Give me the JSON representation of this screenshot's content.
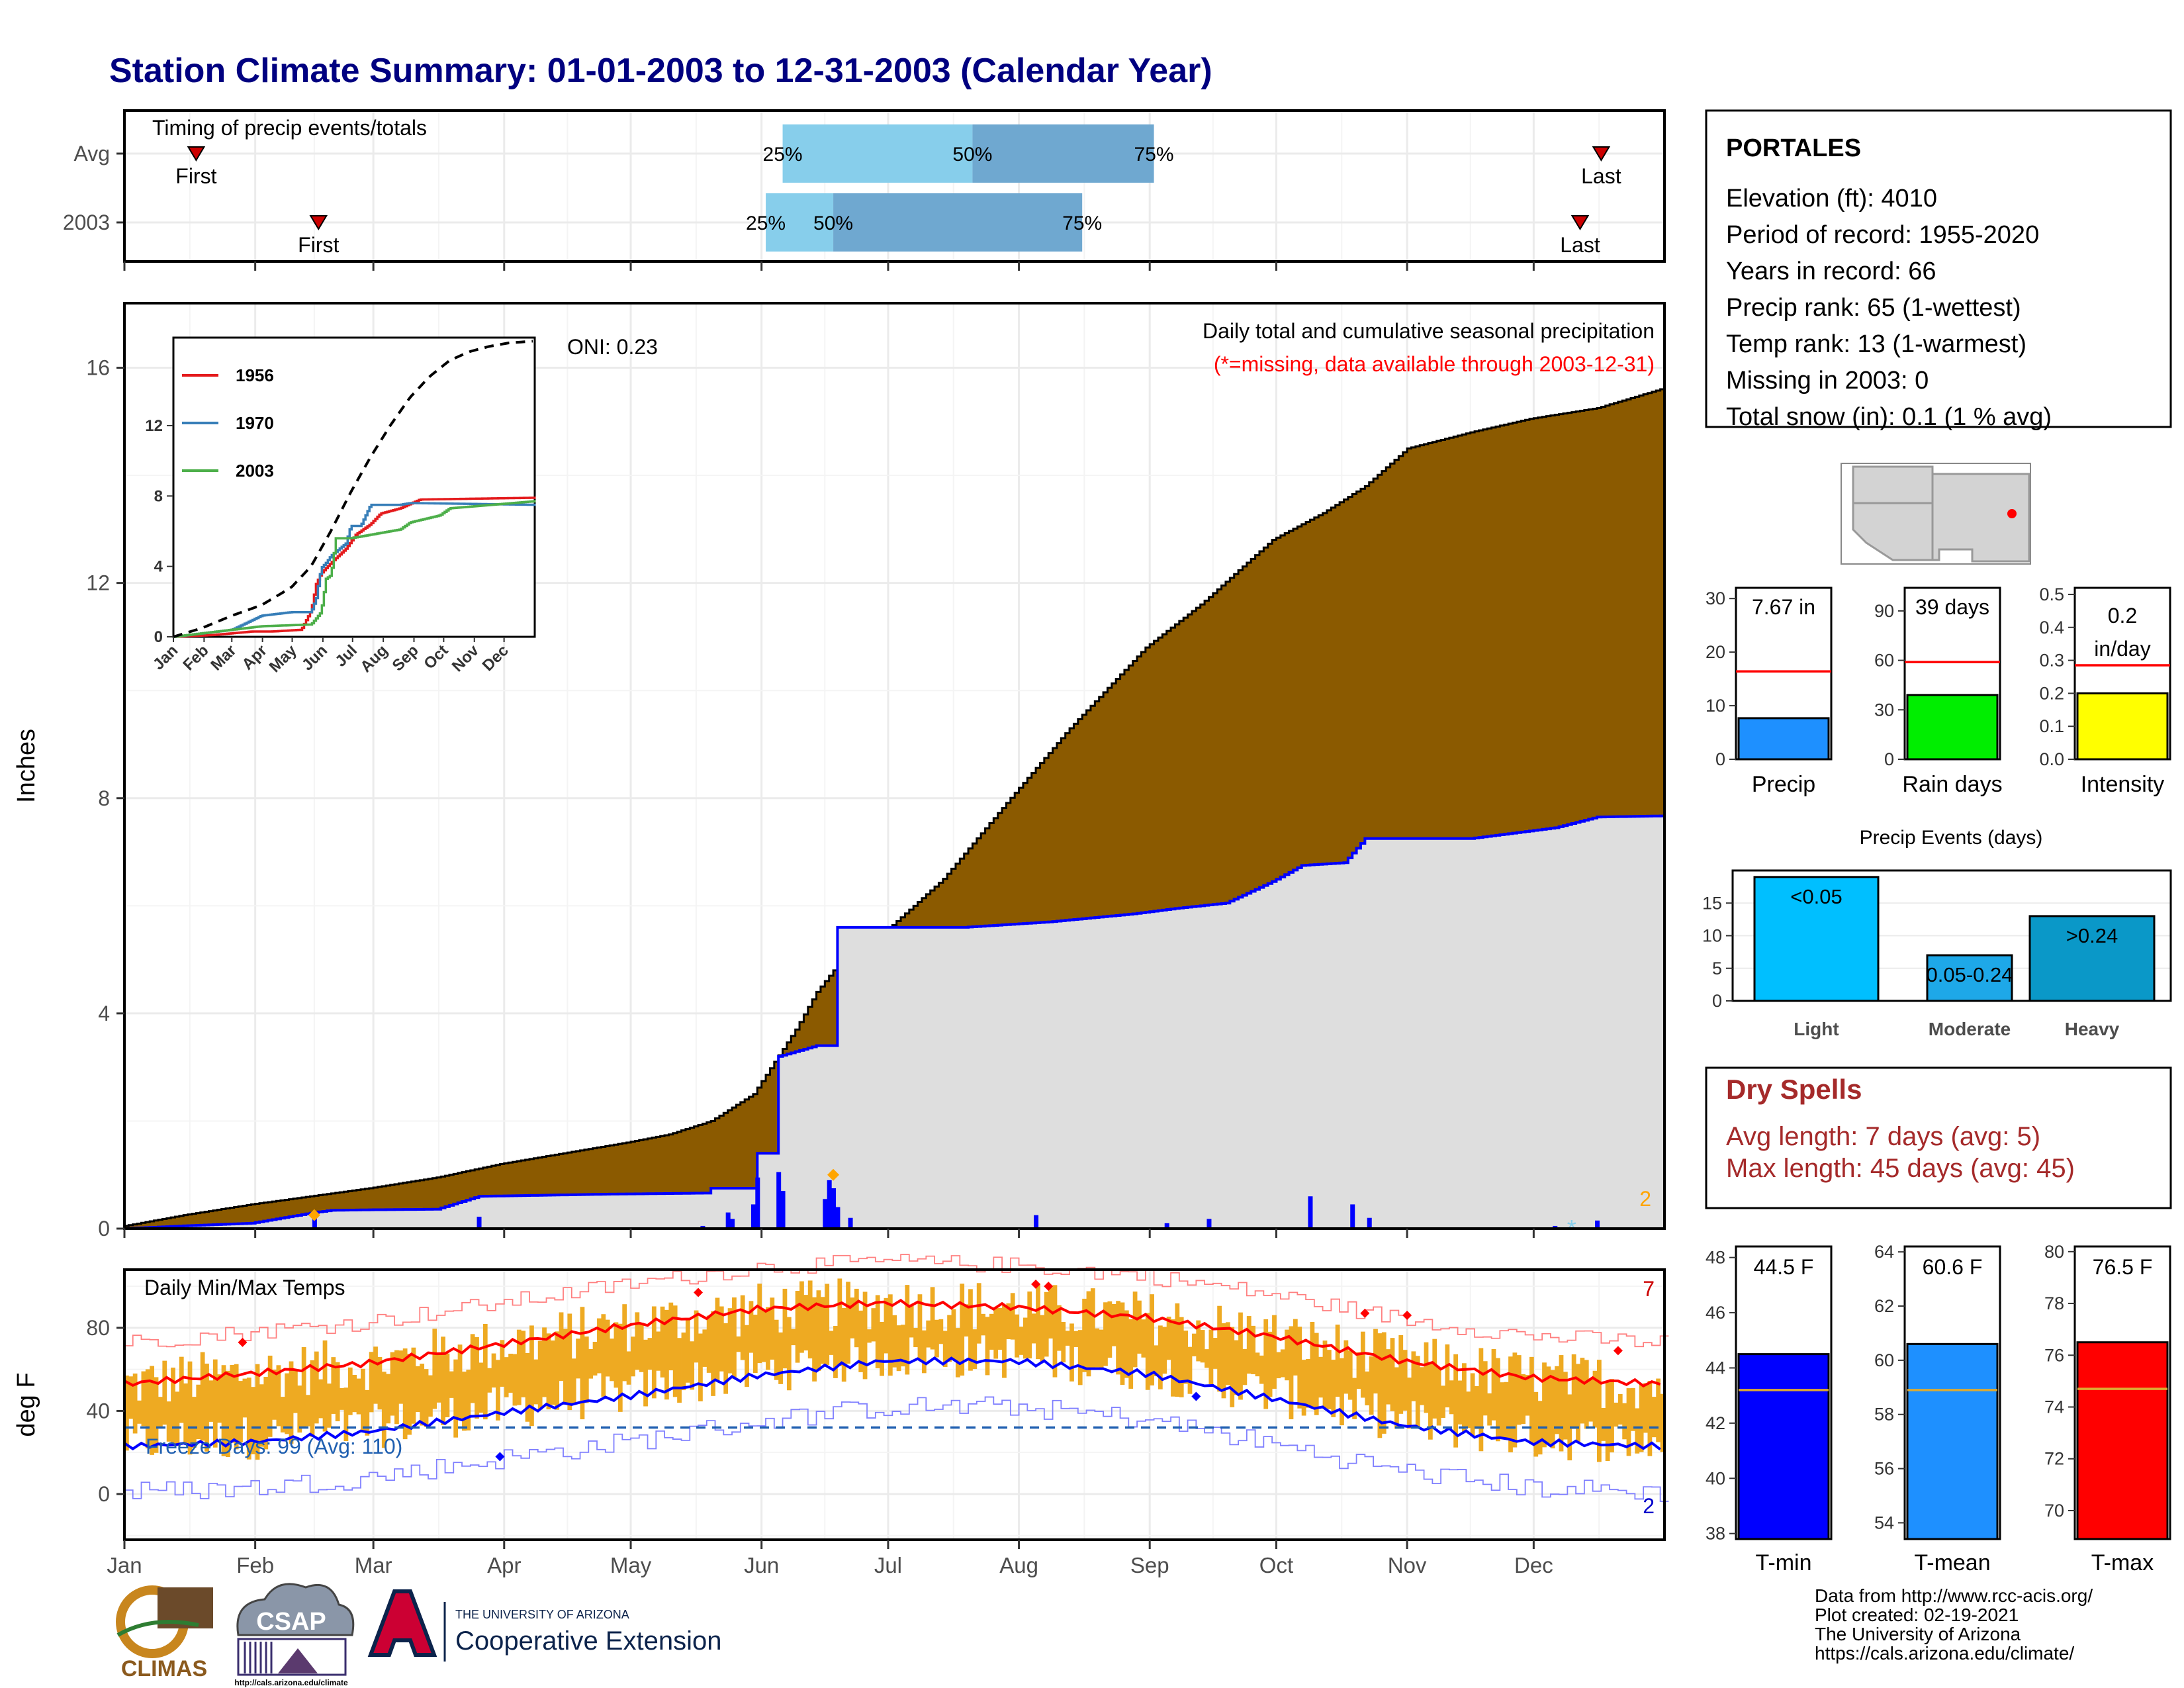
{
  "title": "Station Climate Summary: 01-01-2003 to 12-31-2003 (Calendar Year)",
  "colors": {
    "title": "#000080",
    "cum_avg_fill": "#8B5A00",
    "cum_year_fill": "#DEDEDE",
    "cum_year_line": "#0000FF",
    "missing_text": "#FF0000",
    "temp_bar": "#EEAA22",
    "tmax_avg": "#FF0000",
    "tmin_avg": "#0000FF",
    "dry_spell_text": "#A52A2A",
    "q_light": "#87CEEB",
    "q_dark": "#6FA8D0"
  },
  "month_labels": [
    "Jan",
    "Feb",
    "Mar",
    "Apr",
    "May",
    "Jun",
    "Jul",
    "Aug",
    "Sep",
    "Oct",
    "Nov",
    "Dec"
  ],
  "timing_panel": {
    "title": "Timing of precip events/totals",
    "rows": [
      {
        "label": "Avg",
        "first_doy": 18,
        "last_doy": 351,
        "q25_doy": 157,
        "q50_doy": 202,
        "q75_doy": 245,
        "labels": {
          "first": "First",
          "last": "Last",
          "q25": "25%",
          "q50": "50%",
          "q75": "75%"
        }
      },
      {
        "label": "2003",
        "first_doy": 47,
        "last_doy": 346,
        "q25_doy": 153,
        "q50_doy": 169,
        "q75_doy": 228,
        "labels": {
          "first": "First",
          "last": "Last",
          "q25": "25%",
          "q50": "50%",
          "q75": "75%"
        }
      }
    ]
  },
  "precip_panel": {
    "ylabel": "Inches",
    "ylim": [
      0,
      17.2
    ],
    "yticks": [
      0,
      4,
      8,
      12,
      16
    ],
    "subtitle": "Daily total and cumulative seasonal precipitation",
    "missing_note": "(*=missing, data available through 2003-12-31)",
    "oni": "ONI: 0.23",
    "missing_count": "2"
  },
  "inset": {
    "ylim": [
      0,
      17
    ],
    "yticks": [
      0,
      4,
      8,
      12
    ],
    "xticks": [
      "Jan",
      "Feb",
      "Mar",
      "Apr",
      "May",
      "Jun",
      "Jul",
      "Aug",
      "Sep",
      "Oct",
      "Nov",
      "Dec"
    ],
    "legend": [
      {
        "name": "1956",
        "color": "#E41A1C"
      },
      {
        "name": "1970",
        "color": "#377EB8"
      },
      {
        "name": "2003",
        "color": "#4DAF4A"
      }
    ]
  },
  "temp_panel": {
    "ylabel": "deg F",
    "title": "Daily Min/Max Temps",
    "ylim": [
      -22,
      108
    ],
    "yticks": [
      0,
      40,
      80
    ],
    "freeze_line": 32,
    "freeze_label": "Freeze Days: 99 (Avg: 110)",
    "count_red": "7",
    "count_blue": "2"
  },
  "station": {
    "name": "PORTALES",
    "lines": [
      "Elevation (ft): 4010",
      "Period of record: 1955-2020",
      "Years in record: 66",
      "Precip rank: 65 (1-wettest)",
      "Temp rank: 13 (1-warmest)",
      "Missing in 2003: 0",
      "Total snow (in): 0.1 (1 % avg)"
    ]
  },
  "summary_bars": [
    {
      "name": "Precip",
      "value_label": "7.67 in",
      "value": 7.67,
      "avg": 16.4,
      "ylim": [
        0,
        32
      ],
      "yticks": [
        "0",
        "10",
        "20",
        "30"
      ],
      "ytick_values": [
        0,
        10,
        20,
        30
      ],
      "color": "#1E90FF"
    },
    {
      "name": "Rain days",
      "value_label": "39 days",
      "value": 39,
      "avg": 59,
      "ylim": [
        0,
        104
      ],
      "yticks": [
        "0",
        "30",
        "60",
        "90"
      ],
      "ytick_values": [
        0,
        30,
        60,
        90
      ],
      "color": "#00EE00"
    },
    {
      "name": "Intensity",
      "value_label": "0.2 in/day",
      "value_label_top": "0.2",
      "value_label_bottom": "in/day",
      "value": 0.2,
      "avg": 0.285,
      "ylim": [
        0,
        0.52
      ],
      "yticks": [
        "0.0",
        "0.1",
        "0.2",
        "0.3",
        "0.4",
        "0.5"
      ],
      "ytick_values": [
        0,
        0.1,
        0.2,
        0.3,
        0.4,
        0.5
      ],
      "color": "#FFFF00"
    }
  ],
  "precip_events": {
    "title": "Precip Events (days)",
    "ylim": [
      0,
      20
    ],
    "yticks": [
      0,
      5,
      10,
      15
    ],
    "bars": [
      {
        "name": "Light",
        "value": 19,
        "label": "<0.05",
        "color": "#00BFFF"
      },
      {
        "name": "Moderate",
        "value": 7,
        "label": "0.05-0.24",
        "color": "#1EA8E8"
      },
      {
        "name": "Heavy",
        "value": 13,
        "label": ">0.24",
        "color": "#0A98C8"
      }
    ]
  },
  "dry_spells": {
    "title": "Dry Spells",
    "lines": [
      "Avg length: 7 days (avg: 5)",
      "Max length: 45 days (avg: 45)"
    ]
  },
  "temp_bars": [
    {
      "name": "T-min",
      "value_label": "44.5 F",
      "value": 44.5,
      "avg": 43.2,
      "ylim": [
        37.8,
        48.4
      ],
      "yticks": [
        "38",
        "40",
        "42",
        "44",
        "46",
        "48"
      ],
      "ytick_values": [
        38,
        40,
        42,
        44,
        46,
        48
      ],
      "color": "#0000FF"
    },
    {
      "name": "T-mean",
      "value_label": "60.6 F",
      "value": 60.6,
      "avg": 58.9,
      "ylim": [
        53.4,
        64.2
      ],
      "yticks": [
        "54",
        "56",
        "58",
        "60",
        "62",
        "64"
      ],
      "ytick_values": [
        54,
        56,
        58,
        60,
        62,
        64
      ],
      "color": "#1E90FF"
    },
    {
      "name": "T-max",
      "value_label": "76.5 F",
      "value": 76.5,
      "avg": 74.7,
      "ylim": [
        68.9,
        80.2
      ],
      "yticks": [
        "70",
        "72",
        "74",
        "76",
        "78",
        "80"
      ],
      "ytick_values": [
        70,
        72,
        74,
        76,
        78,
        80
      ],
      "color": "#FF0000"
    }
  ],
  "credits": [
    "Data from http://www.rcc-acis.org/",
    "Plot created: 02-19-2021",
    "The University of Arizona",
    "https://cals.arizona.edu/climate/"
  ],
  "logos": {
    "climas": "CLIMAS",
    "csap": "CSAP",
    "csap_url": "http://cals.arizona.edu/climate",
    "ua_small": "THE UNIVERSITY OF ARIZONA",
    "ua_big": "Cooperative Extension"
  },
  "chart_data": [
    {
      "type": "area",
      "title": "Daily total and cumulative seasonal precipitation",
      "ylabel": "Inches",
      "ylim": [
        0,
        17.2
      ],
      "series": [
        {
          "name": "",
          "x_doy": [
            1,
            15,
            31,
            45,
            59,
            75,
            90,
            105,
            120,
            130,
            140,
            150,
            160,
            165,
            170,
            181,
            195,
            212,
            225,
            243,
            256,
            273,
            285,
            295,
            305,
            320,
            334,
            350,
            365
          ],
          "values": [
            0.05,
            0.25,
            0.45,
            0.6,
            0.75,
            0.95,
            1.2,
            1.4,
            1.6,
            1.75,
            2.0,
            2.5,
            3.7,
            4.4,
            4.9,
            5.5,
            6.5,
            8.1,
            9.3,
            10.8,
            11.6,
            12.8,
            13.3,
            13.8,
            14.5,
            14.8,
            15.05,
            15.25,
            15.6
          ]
        },
        {
          "name": "",
          "x_doy": [
            1,
            15,
            31,
            46,
            50,
            60,
            75,
            85,
            100,
            115,
            139,
            140,
            150,
            151,
            155,
            156,
            165,
            169,
            170,
            200,
            220,
            240,
            250,
            262,
            273,
            280,
            290,
            295,
            320,
            340,
            350,
            365
          ],
          "values": [
            0.0,
            0.05,
            0.1,
            0.3,
            0.34,
            0.35,
            0.36,
            0.6,
            0.62,
            0.64,
            0.66,
            0.75,
            0.75,
            1.4,
            1.4,
            3.2,
            3.4,
            3.4,
            5.6,
            5.6,
            5.7,
            5.85,
            5.95,
            6.05,
            6.45,
            6.75,
            6.8,
            7.25,
            7.25,
            7.45,
            7.65,
            7.67
          ]
        }
      ],
      "daily_bars": [
        {
          "doy": 46,
          "value": 0.2
        },
        {
          "doy": 85,
          "value": 0.22
        },
        {
          "doy": 138,
          "value": 0.05
        },
        {
          "doy": 144,
          "value": 0.3
        },
        {
          "doy": 145,
          "value": 0.18
        },
        {
          "doy": 150,
          "value": 0.45
        },
        {
          "doy": 151,
          "value": 0.95
        },
        {
          "doy": 156,
          "value": 1.05
        },
        {
          "doy": 157,
          "value": 0.7
        },
        {
          "doy": 167,
          "value": 0.55
        },
        {
          "doy": 168,
          "value": 0.9
        },
        {
          "doy": 169,
          "value": 0.75
        },
        {
          "doy": 170,
          "value": 0.4
        },
        {
          "doy": 173,
          "value": 0.2
        },
        {
          "doy": 217,
          "value": 0.25
        },
        {
          "doy": 248,
          "value": 0.1
        },
        {
          "doy": 258,
          "value": 0.18
        },
        {
          "doy": 282,
          "value": 0.6
        },
        {
          "doy": 292,
          "value": 0.45
        },
        {
          "doy": 296,
          "value": 0.2
        },
        {
          "doy": 340,
          "value": 0.05
        },
        {
          "doy": 350,
          "value": 0.15
        }
      ]
    },
    {
      "type": "line",
      "title": "Daily Min/Max Temps",
      "ylabel": "deg F",
      "ylim": [
        -22,
        108
      ],
      "series": [
        {
          "name": "",
          "x_doy": [
            1,
            31,
            59,
            90,
            120,
            151,
            181,
            212,
            243,
            273,
            304,
            334,
            365
          ],
          "values": [
            53,
            58,
            63,
            72,
            81,
            89,
            92,
            90,
            85,
            76,
            64,
            56,
            53
          ]
        },
        {
          "name": "",
          "x_doy": [
            1,
            31,
            59,
            90,
            120,
            151,
            181,
            212,
            243,
            273,
            304,
            334,
            365
          ],
          "values": [
            23,
            25,
            30,
            39,
            47,
            57,
            64,
            64,
            58,
            46,
            33,
            25,
            23
          ]
        }
      ]
    }
  ]
}
